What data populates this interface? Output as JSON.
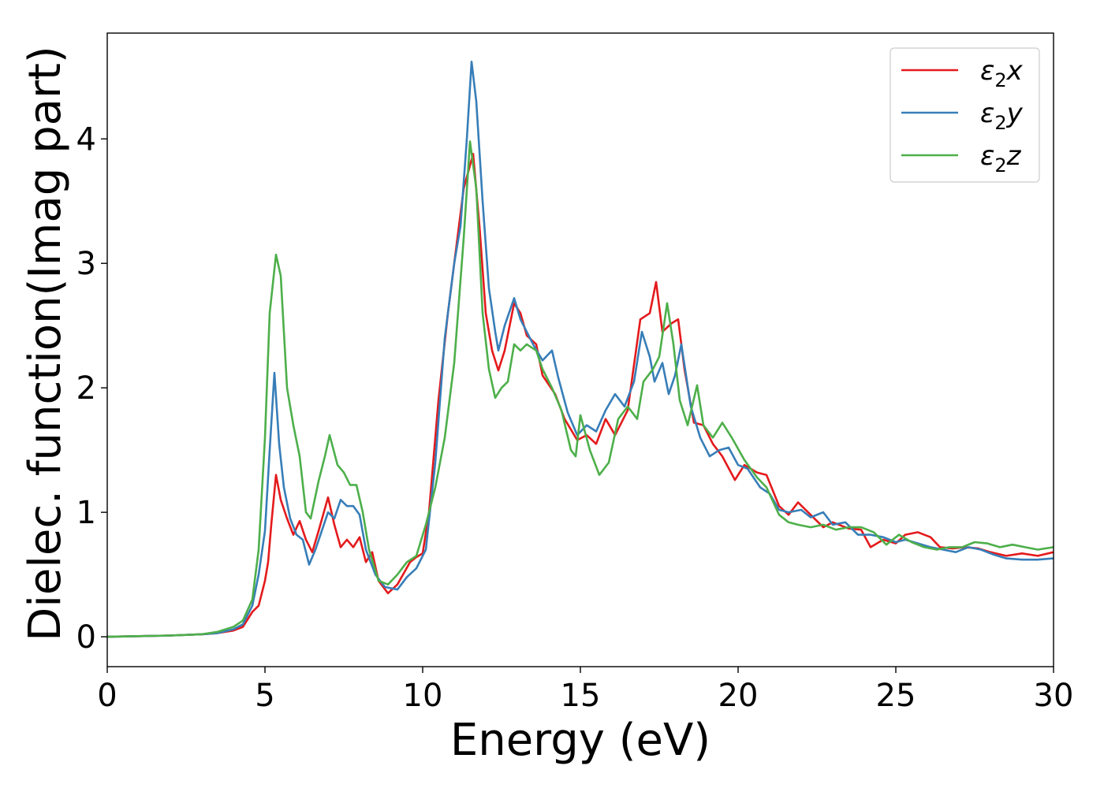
{
  "chart_data": {
    "type": "line",
    "title": "",
    "xlabel": "Energy (eV)",
    "ylabel": "Dielec. function(Imag part)",
    "xlim": [
      0,
      30
    ],
    "ylim": [
      -0.24,
      4.85
    ],
    "x_ticks": [
      "0",
      "5",
      "10",
      "15",
      "20",
      "25",
      "30"
    ],
    "y_ticks": [
      "0",
      "1",
      "2",
      "3",
      "4"
    ],
    "grid": false,
    "legend_position": "top-right",
    "series": [
      {
        "name": "ε₂x",
        "legend_base": "ε",
        "legend_sub": "2",
        "legend_suffix": "x",
        "color": "#e41a1c",
        "points": [
          [
            0,
            0.0
          ],
          [
            1,
            0.005
          ],
          [
            2,
            0.01
          ],
          [
            3,
            0.02
          ],
          [
            3.5,
            0.03
          ],
          [
            4,
            0.05
          ],
          [
            4.3,
            0.08
          ],
          [
            4.6,
            0.2
          ],
          [
            4.8,
            0.25
          ],
          [
            5.0,
            0.45
          ],
          [
            5.1,
            0.6
          ],
          [
            5.2,
            0.9
          ],
          [
            5.35,
            1.3
          ],
          [
            5.5,
            1.1
          ],
          [
            5.7,
            0.95
          ],
          [
            5.9,
            0.82
          ],
          [
            6.1,
            0.93
          ],
          [
            6.3,
            0.78
          ],
          [
            6.5,
            0.68
          ],
          [
            6.7,
            0.85
          ],
          [
            7.0,
            1.12
          ],
          [
            7.2,
            0.9
          ],
          [
            7.4,
            0.72
          ],
          [
            7.6,
            0.78
          ],
          [
            7.8,
            0.72
          ],
          [
            8.0,
            0.8
          ],
          [
            8.2,
            0.6
          ],
          [
            8.4,
            0.68
          ],
          [
            8.6,
            0.45
          ],
          [
            8.9,
            0.35
          ],
          [
            9.2,
            0.42
          ],
          [
            9.6,
            0.6
          ],
          [
            9.8,
            0.64
          ],
          [
            10.0,
            0.67
          ],
          [
            10.2,
            1.0
          ],
          [
            10.5,
            1.9
          ],
          [
            10.8,
            2.6
          ],
          [
            11.0,
            3.0
          ],
          [
            11.3,
            3.6
          ],
          [
            11.6,
            3.88
          ],
          [
            11.8,
            3.3
          ],
          [
            12.0,
            2.6
          ],
          [
            12.2,
            2.3
          ],
          [
            12.4,
            2.14
          ],
          [
            12.6,
            2.3
          ],
          [
            12.9,
            2.68
          ],
          [
            13.1,
            2.6
          ],
          [
            13.3,
            2.42
          ],
          [
            13.6,
            2.35
          ],
          [
            13.8,
            2.1
          ],
          [
            14.2,
            1.95
          ],
          [
            14.5,
            1.75
          ],
          [
            14.9,
            1.58
          ],
          [
            15.2,
            1.62
          ],
          [
            15.5,
            1.55
          ],
          [
            15.8,
            1.75
          ],
          [
            16.1,
            1.62
          ],
          [
            16.5,
            1.82
          ],
          [
            16.9,
            2.55
          ],
          [
            17.2,
            2.6
          ],
          [
            17.4,
            2.85
          ],
          [
            17.6,
            2.45
          ],
          [
            17.9,
            2.52
          ],
          [
            18.1,
            2.55
          ],
          [
            18.3,
            2.15
          ],
          [
            18.6,
            1.72
          ],
          [
            18.9,
            1.7
          ],
          [
            19.2,
            1.55
          ],
          [
            19.5,
            1.45
          ],
          [
            19.9,
            1.26
          ],
          [
            20.2,
            1.38
          ],
          [
            20.6,
            1.32
          ],
          [
            20.9,
            1.3
          ],
          [
            21.3,
            1.05
          ],
          [
            21.6,
            0.98
          ],
          [
            21.9,
            1.08
          ],
          [
            22.3,
            0.98
          ],
          [
            22.7,
            0.88
          ],
          [
            23.0,
            0.92
          ],
          [
            23.5,
            0.87
          ],
          [
            23.9,
            0.86
          ],
          [
            24.2,
            0.72
          ],
          [
            24.6,
            0.78
          ],
          [
            25.0,
            0.75
          ],
          [
            25.3,
            0.82
          ],
          [
            25.7,
            0.84
          ],
          [
            26.1,
            0.8
          ],
          [
            26.4,
            0.72
          ],
          [
            26.8,
            0.71
          ],
          [
            27.2,
            0.72
          ],
          [
            27.6,
            0.71
          ],
          [
            28.0,
            0.68
          ],
          [
            28.5,
            0.65
          ],
          [
            29.0,
            0.67
          ],
          [
            29.5,
            0.65
          ],
          [
            30,
            0.68
          ]
        ]
      },
      {
        "name": "ε₂y",
        "legend_base": "ε",
        "legend_sub": "2",
        "legend_suffix": "y",
        "color": "#377eb8",
        "points": [
          [
            0,
            0.0
          ],
          [
            1,
            0.005
          ],
          [
            2,
            0.01
          ],
          [
            3,
            0.02
          ],
          [
            3.5,
            0.03
          ],
          [
            4,
            0.06
          ],
          [
            4.3,
            0.1
          ],
          [
            4.6,
            0.25
          ],
          [
            4.8,
            0.5
          ],
          [
            5.0,
            0.85
          ],
          [
            5.15,
            1.5
          ],
          [
            5.3,
            2.12
          ],
          [
            5.45,
            1.55
          ],
          [
            5.6,
            1.2
          ],
          [
            5.8,
            0.95
          ],
          [
            6.0,
            0.82
          ],
          [
            6.2,
            0.78
          ],
          [
            6.4,
            0.58
          ],
          [
            6.6,
            0.7
          ],
          [
            6.8,
            0.85
          ],
          [
            7.0,
            1.0
          ],
          [
            7.2,
            0.95
          ],
          [
            7.4,
            1.1
          ],
          [
            7.6,
            1.05
          ],
          [
            7.8,
            1.05
          ],
          [
            8.0,
            0.98
          ],
          [
            8.2,
            0.7
          ],
          [
            8.5,
            0.5
          ],
          [
            8.8,
            0.4
          ],
          [
            9.2,
            0.38
          ],
          [
            9.5,
            0.48
          ],
          [
            9.8,
            0.55
          ],
          [
            10.1,
            0.7
          ],
          [
            10.4,
            1.4
          ],
          [
            10.7,
            2.4
          ],
          [
            11.0,
            3.0
          ],
          [
            11.2,
            3.3
          ],
          [
            11.4,
            4.0
          ],
          [
            11.55,
            4.62
          ],
          [
            11.7,
            4.3
          ],
          [
            11.9,
            3.5
          ],
          [
            12.1,
            2.8
          ],
          [
            12.3,
            2.45
          ],
          [
            12.4,
            2.3
          ],
          [
            12.6,
            2.5
          ],
          [
            12.9,
            2.72
          ],
          [
            13.1,
            2.55
          ],
          [
            13.3,
            2.45
          ],
          [
            13.5,
            2.35
          ],
          [
            13.8,
            2.22
          ],
          [
            14.1,
            2.3
          ],
          [
            14.3,
            2.08
          ],
          [
            14.6,
            1.8
          ],
          [
            14.9,
            1.62
          ],
          [
            15.2,
            1.7
          ],
          [
            15.5,
            1.65
          ],
          [
            15.8,
            1.82
          ],
          [
            16.1,
            1.95
          ],
          [
            16.4,
            1.85
          ],
          [
            16.7,
            2.05
          ],
          [
            16.95,
            2.45
          ],
          [
            17.2,
            2.25
          ],
          [
            17.35,
            2.05
          ],
          [
            17.6,
            2.2
          ],
          [
            17.8,
            1.95
          ],
          [
            18.0,
            2.1
          ],
          [
            18.2,
            2.35
          ],
          [
            18.5,
            1.85
          ],
          [
            18.8,
            1.6
          ],
          [
            19.1,
            1.45
          ],
          [
            19.4,
            1.5
          ],
          [
            19.7,
            1.52
          ],
          [
            20.0,
            1.38
          ],
          [
            20.3,
            1.35
          ],
          [
            20.7,
            1.2
          ],
          [
            21.0,
            1.15
          ],
          [
            21.3,
            1.02
          ],
          [
            21.6,
            1.0
          ],
          [
            22.0,
            1.02
          ],
          [
            22.3,
            0.96
          ],
          [
            22.7,
            1.0
          ],
          [
            23.0,
            0.9
          ],
          [
            23.4,
            0.92
          ],
          [
            23.8,
            0.82
          ],
          [
            24.2,
            0.82
          ],
          [
            24.6,
            0.8
          ],
          [
            25.0,
            0.76
          ],
          [
            25.3,
            0.78
          ],
          [
            25.7,
            0.75
          ],
          [
            26.1,
            0.72
          ],
          [
            26.5,
            0.7
          ],
          [
            26.9,
            0.68
          ],
          [
            27.3,
            0.72
          ],
          [
            27.7,
            0.7
          ],
          [
            28.1,
            0.66
          ],
          [
            28.5,
            0.63
          ],
          [
            29.0,
            0.62
          ],
          [
            29.5,
            0.62
          ],
          [
            30,
            0.63
          ]
        ]
      },
      {
        "name": "ε₂z",
        "legend_base": "ε",
        "legend_sub": "2",
        "legend_suffix": "z",
        "color": "#4daf4a",
        "points": [
          [
            0,
            0.0
          ],
          [
            1,
            0.005
          ],
          [
            2,
            0.01
          ],
          [
            3,
            0.02
          ],
          [
            3.5,
            0.04
          ],
          [
            4,
            0.08
          ],
          [
            4.3,
            0.13
          ],
          [
            4.6,
            0.3
          ],
          [
            4.8,
            0.7
          ],
          [
            5.0,
            1.6
          ],
          [
            5.15,
            2.6
          ],
          [
            5.35,
            3.07
          ],
          [
            5.5,
            2.9
          ],
          [
            5.7,
            2.0
          ],
          [
            5.9,
            1.7
          ],
          [
            6.1,
            1.45
          ],
          [
            6.3,
            1.0
          ],
          [
            6.45,
            0.95
          ],
          [
            6.7,
            1.25
          ],
          [
            6.9,
            1.45
          ],
          [
            7.05,
            1.62
          ],
          [
            7.3,
            1.38
          ],
          [
            7.5,
            1.32
          ],
          [
            7.7,
            1.22
          ],
          [
            7.9,
            1.22
          ],
          [
            8.1,
            1.0
          ],
          [
            8.3,
            0.7
          ],
          [
            8.6,
            0.45
          ],
          [
            8.9,
            0.42
          ],
          [
            9.2,
            0.5
          ],
          [
            9.5,
            0.6
          ],
          [
            9.8,
            0.65
          ],
          [
            10.1,
            0.9
          ],
          [
            10.4,
            1.2
          ],
          [
            10.7,
            1.6
          ],
          [
            11.0,
            2.2
          ],
          [
            11.3,
            3.2
          ],
          [
            11.5,
            3.98
          ],
          [
            11.7,
            3.6
          ],
          [
            11.9,
            2.6
          ],
          [
            12.1,
            2.15
          ],
          [
            12.3,
            1.92
          ],
          [
            12.5,
            2.0
          ],
          [
            12.7,
            2.05
          ],
          [
            12.9,
            2.35
          ],
          [
            13.1,
            2.3
          ],
          [
            13.3,
            2.35
          ],
          [
            13.6,
            2.3
          ],
          [
            13.8,
            2.15
          ],
          [
            14.1,
            2.0
          ],
          [
            14.4,
            1.82
          ],
          [
            14.7,
            1.5
          ],
          [
            14.85,
            1.45
          ],
          [
            15.0,
            1.78
          ],
          [
            15.3,
            1.5
          ],
          [
            15.6,
            1.3
          ],
          [
            15.9,
            1.4
          ],
          [
            16.2,
            1.75
          ],
          [
            16.5,
            1.85
          ],
          [
            16.8,
            1.75
          ],
          [
            17.0,
            2.05
          ],
          [
            17.3,
            2.15
          ],
          [
            17.5,
            2.25
          ],
          [
            17.75,
            2.68
          ],
          [
            17.95,
            2.35
          ],
          [
            18.15,
            1.9
          ],
          [
            18.4,
            1.7
          ],
          [
            18.7,
            2.02
          ],
          [
            18.9,
            1.7
          ],
          [
            19.2,
            1.6
          ],
          [
            19.5,
            1.72
          ],
          [
            19.8,
            1.6
          ],
          [
            20.2,
            1.42
          ],
          [
            20.6,
            1.28
          ],
          [
            20.9,
            1.2
          ],
          [
            21.3,
            0.98
          ],
          [
            21.6,
            0.92
          ],
          [
            21.9,
            0.9
          ],
          [
            22.3,
            0.88
          ],
          [
            22.7,
            0.9
          ],
          [
            23.1,
            0.86
          ],
          [
            23.5,
            0.88
          ],
          [
            23.9,
            0.88
          ],
          [
            24.3,
            0.84
          ],
          [
            24.7,
            0.74
          ],
          [
            25.1,
            0.82
          ],
          [
            25.5,
            0.76
          ],
          [
            25.9,
            0.72
          ],
          [
            26.3,
            0.7
          ],
          [
            26.7,
            0.72
          ],
          [
            27.1,
            0.72
          ],
          [
            27.5,
            0.76
          ],
          [
            27.9,
            0.75
          ],
          [
            28.3,
            0.72
          ],
          [
            28.7,
            0.74
          ],
          [
            29.1,
            0.72
          ],
          [
            29.5,
            0.7
          ],
          [
            30,
            0.72
          ]
        ]
      }
    ]
  }
}
